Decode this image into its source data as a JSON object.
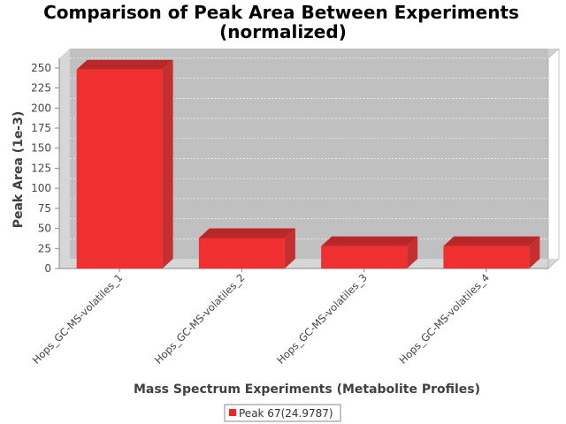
{
  "chart_data": {
    "type": "bar",
    "title_lines": [
      "Comparison of Peak Area Between Experiments",
      "(normalized)"
    ],
    "xlabel": "Mass Spectrum Experiments (Metabolite Profiles)",
    "ylabel": "Peak Area (1e-3)",
    "categories": [
      "Hops_GC-MS-volatiles_1",
      "Hops_GC-MS-volatiles_2",
      "Hops_GC-MS-volatiles_3",
      "Hops_GC-MS-volatiles_4"
    ],
    "series": [
      {
        "name": "Peak 67(24.9787)",
        "values": [
          248,
          38,
          28,
          28
        ],
        "color": "#ff2020"
      }
    ],
    "ylim": [
      0,
      262
    ],
    "yticks": [
      "0",
      "25",
      "50",
      "75",
      "100",
      "125",
      "150",
      "175",
      "200",
      "225",
      "250"
    ],
    "grid": true,
    "three_d": true,
    "legend_position": "bottom",
    "colors": {
      "plot_face": "#c0c0c0",
      "plot_floor": "#d6d6d6",
      "plot_side": "#d0d0d0",
      "bar_top": "#b82828",
      "bar_side": "#c43030",
      "bar_front": "#f03030"
    }
  }
}
